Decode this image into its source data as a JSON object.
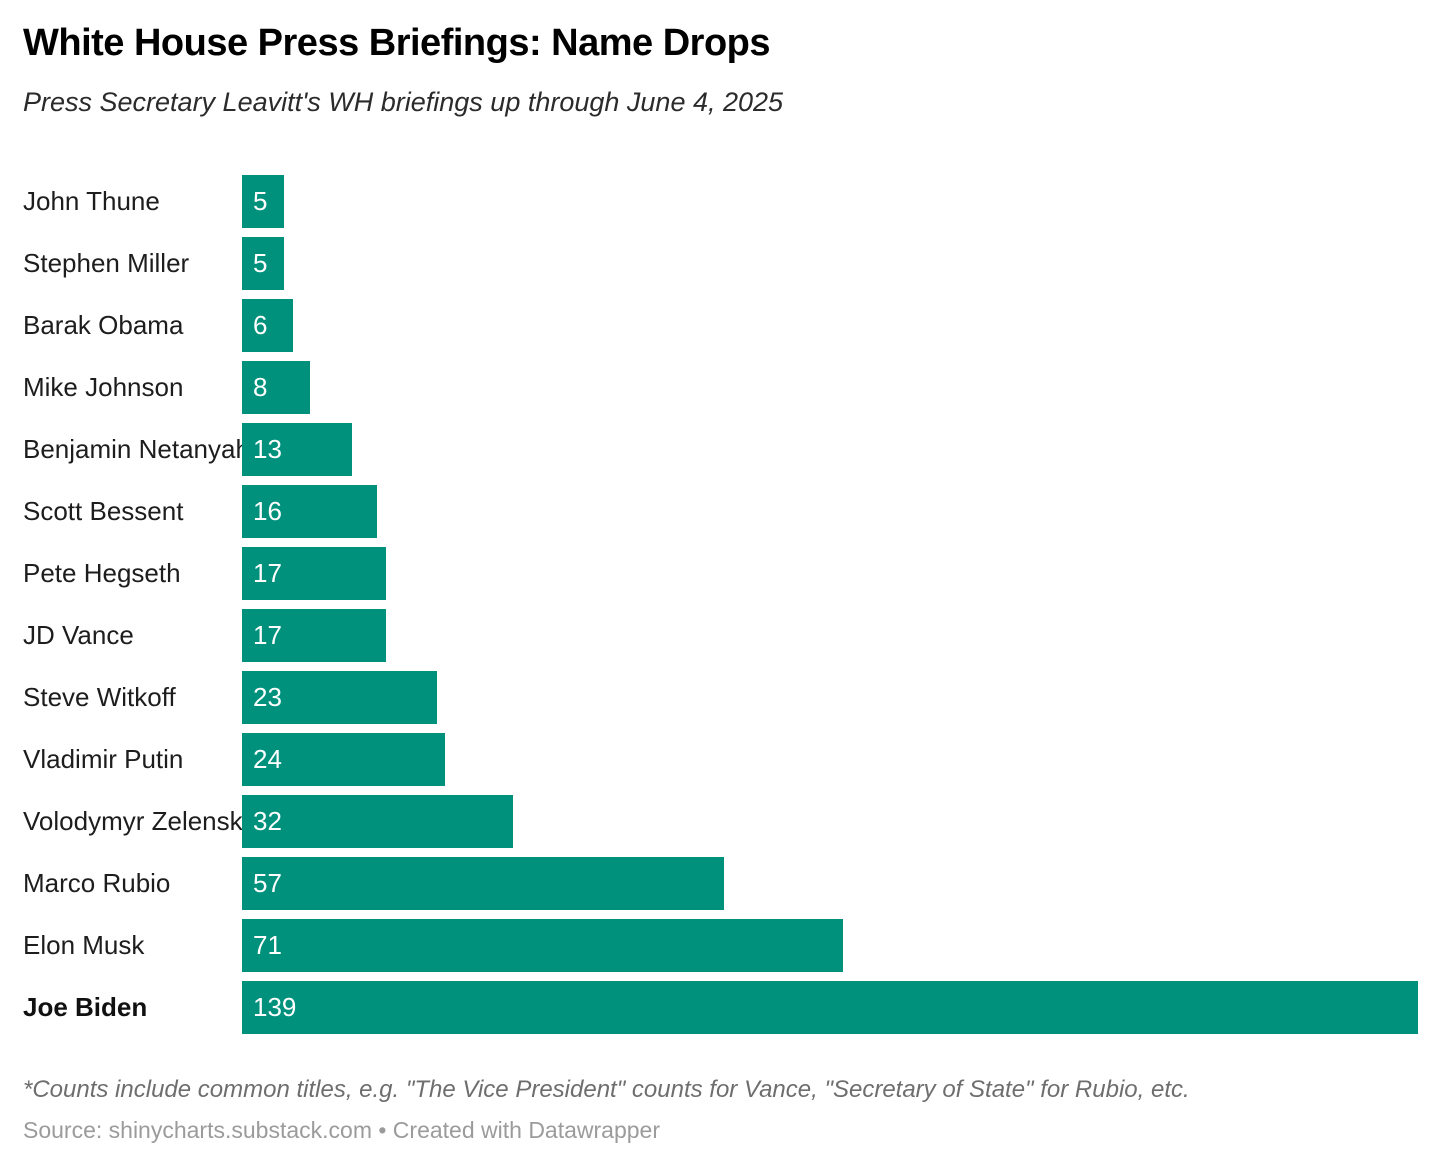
{
  "header": {
    "title": "White House Press Briefings: Name Drops",
    "subtitle": "Press Secretary Leavitt's WH briefings up through June 4, 2025"
  },
  "footer": {
    "footnote": "*Counts include common titles, e.g. \"The Vice President\" counts for Vance, \"Secretary of State\" for Rubio, etc.",
    "source_line": "Source: shinycharts.substack.com • Created with Datawrapper"
  },
  "colors": {
    "bar": "#00917c",
    "title": "#000000",
    "label": "#1d1d1d",
    "value_label": "#ffffff",
    "footnote": "#6e6e6e",
    "source": "#9b9b9b"
  },
  "chart_data": {
    "type": "bar",
    "orientation": "horizontal",
    "title": "White House Press Briefings: Name Drops",
    "subtitle": "Press Secretary Leavitt's WH briefings up through June 4, 2025",
    "categories": [
      "John Thune",
      "Stephen Miller",
      "Barak Obama",
      "Mike Johnson",
      "Benjamin Netanyahu",
      "Scott Bessent",
      "Pete Hegseth",
      "JD Vance",
      "Steve Witkoff",
      "Vladimir Putin",
      "Volodymyr Zelenskyy",
      "Marco Rubio",
      "Elon Musk",
      "Joe Biden"
    ],
    "values": [
      5,
      5,
      6,
      8,
      13,
      16,
      17,
      17,
      23,
      24,
      32,
      57,
      71,
      139
    ],
    "emphasized_category": "Joe Biden",
    "xlim": [
      0,
      139
    ],
    "value_labels": "inside-left",
    "grid": false,
    "legend": false,
    "bar_color": "#00917c"
  }
}
